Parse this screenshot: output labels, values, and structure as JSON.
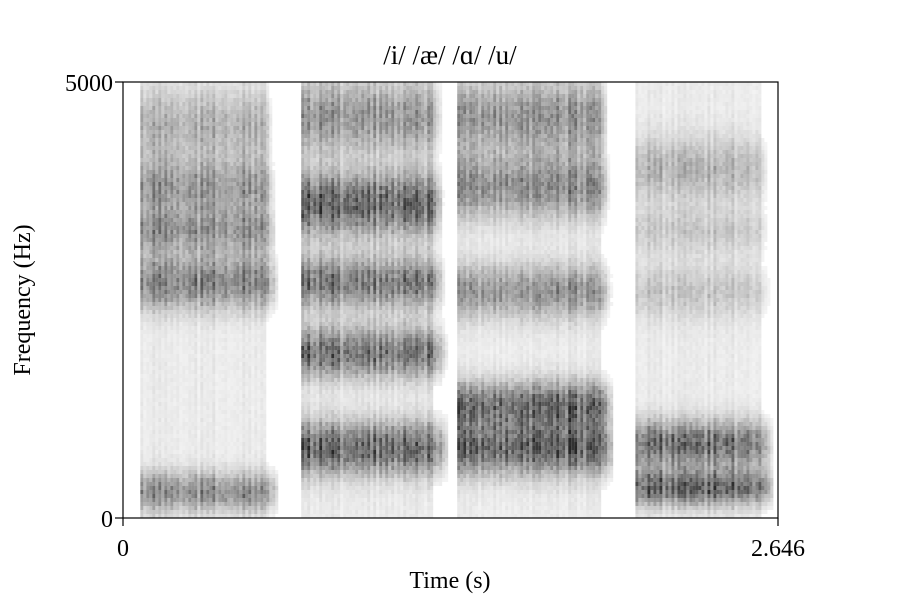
{
  "chart_data": {
    "type": "heatmap",
    "title": "/i/ /æ/ /ɑ/ /u/",
    "xlabel": "Time (s)",
    "ylabel": "Frequency (Hz)",
    "xlim": [
      0,
      2.646
    ],
    "ylim": [
      0,
      5000
    ],
    "x_tick_labels": [
      "0",
      "2.646"
    ],
    "y_tick_labels": [
      "0",
      "5000"
    ],
    "grid": false,
    "colormap": "grayscale (darker = higher intensity)",
    "colors": {
      "background": "#ffffff",
      "axis": "#000000",
      "energy": "#000000"
    },
    "segments": [
      {
        "vowel": "/i/",
        "start": 0.07,
        "end": 0.57,
        "formants_hz": [
          {
            "freq": 300,
            "bandwidth": 220,
            "strength": 0.55
          },
          {
            "freq": 2700,
            "bandwidth": 300,
            "strength": 0.62
          },
          {
            "freq": 3300,
            "bandwidth": 260,
            "strength": 0.5
          },
          {
            "freq": 3800,
            "bandwidth": 300,
            "strength": 0.48
          },
          {
            "freq": 4500,
            "bandwidth": 400,
            "strength": 0.35
          }
        ]
      },
      {
        "vowel": "/æ/",
        "start": 0.72,
        "end": 1.25,
        "formants_hz": [
          {
            "freq": 800,
            "bandwidth": 300,
            "strength": 0.78
          },
          {
            "freq": 1900,
            "bandwidth": 280,
            "strength": 0.72
          },
          {
            "freq": 2700,
            "bandwidth": 280,
            "strength": 0.68
          },
          {
            "freq": 3600,
            "bandwidth": 350,
            "strength": 0.8
          },
          {
            "freq": 4600,
            "bandwidth": 400,
            "strength": 0.5
          }
        ]
      },
      {
        "vowel": "/ɑ/",
        "start": 1.35,
        "end": 1.92,
        "formants_hz": [
          {
            "freq": 800,
            "bandwidth": 300,
            "strength": 0.85
          },
          {
            "freq": 1300,
            "bandwidth": 260,
            "strength": 0.78
          },
          {
            "freq": 2600,
            "bandwidth": 300,
            "strength": 0.55
          },
          {
            "freq": 3800,
            "bandwidth": 350,
            "strength": 0.6
          },
          {
            "freq": 4600,
            "bandwidth": 400,
            "strength": 0.55
          }
        ]
      },
      {
        "vowel": "/u/",
        "start": 2.07,
        "end": 2.57,
        "formants_hz": [
          {
            "freq": 350,
            "bandwidth": 200,
            "strength": 0.78
          },
          {
            "freq": 850,
            "bandwidth": 260,
            "strength": 0.72
          },
          {
            "freq": 2600,
            "bandwidth": 300,
            "strength": 0.22
          },
          {
            "freq": 3300,
            "bandwidth": 250,
            "strength": 0.2
          },
          {
            "freq": 4000,
            "bandwidth": 350,
            "strength": 0.32
          }
        ]
      }
    ]
  }
}
